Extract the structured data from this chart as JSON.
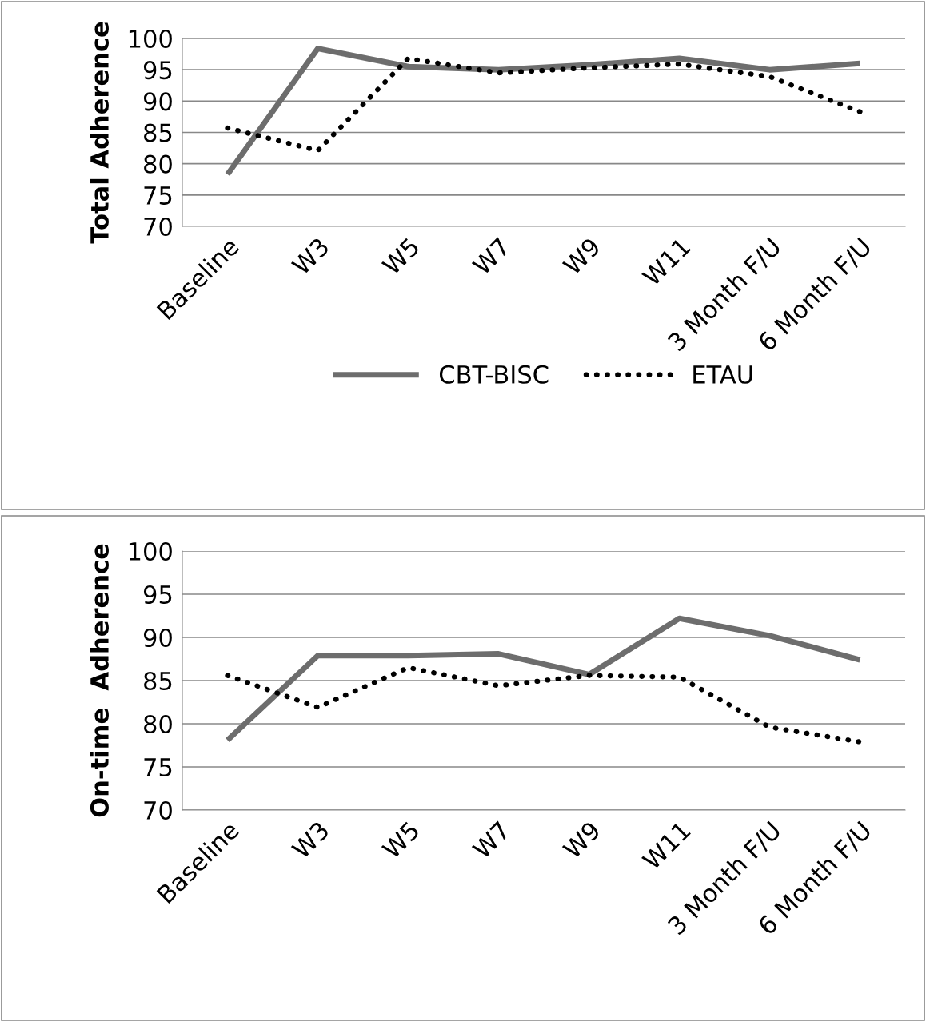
{
  "chart_data": [
    {
      "type": "line",
      "ylabel": "Total Adherence",
      "categories": [
        "Baseline",
        "W3",
        "W5",
        "W7",
        "W9",
        "W11",
        "3 Month F/U",
        "6 Month F/U"
      ],
      "ylim": [
        70,
        100
      ],
      "yticks": [
        70,
        75,
        80,
        85,
        90,
        95,
        100
      ],
      "grid": "y",
      "legend": "bottom",
      "marker": "none",
      "series": [
        {
          "name": "CBT-BISC",
          "color": "#6d6d6d",
          "line_style": "solid",
          "values": [
            78.3,
            98.4,
            95.5,
            95.0,
            95.8,
            96.8,
            95.0,
            96.0
          ]
        },
        {
          "name": "ETAU",
          "color": "#000000",
          "line_style": "dotted",
          "values": [
            85.7,
            82.1,
            96.8,
            94.5,
            95.3,
            95.9,
            93.9,
            88.3
          ]
        }
      ]
    },
    {
      "type": "line",
      "ylabel": "On-time  Adherence",
      "categories": [
        "Baseline",
        "W3",
        "W5",
        "W7",
        "W9",
        "W11",
        "3 Month F/U",
        "6 Month F/U"
      ],
      "ylim": [
        70,
        100
      ],
      "yticks": [
        70,
        75,
        80,
        85,
        90,
        95,
        100
      ],
      "grid": "y",
      "marker": "none",
      "series": [
        {
          "color": "#6d6d6d",
          "line_style": "solid",
          "values": [
            78.1,
            87.9,
            87.9,
            88.1,
            85.7,
            92.2,
            90.2,
            87.4
          ]
        },
        {
          "color": "#000000",
          "line_style": "dotted",
          "values": [
            85.6,
            81.9,
            86.5,
            84.4,
            85.6,
            85.4,
            79.6,
            77.9
          ]
        }
      ]
    }
  ]
}
